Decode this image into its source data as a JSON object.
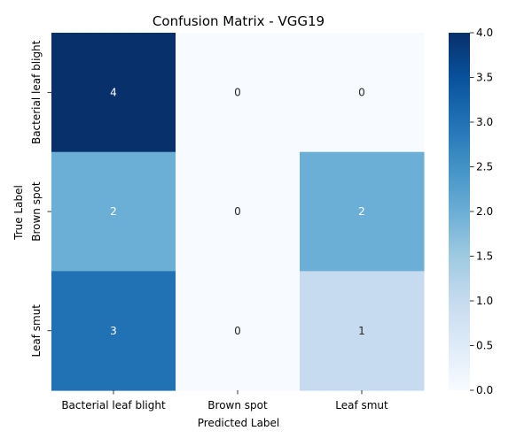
{
  "chart_data": {
    "type": "heatmap",
    "title": "Confusion Matrix - VGG19",
    "xlabel": "Predicted Label",
    "ylabel": "True Label",
    "x_categories": [
      "Bacterial leaf blight",
      "Brown spot",
      "Leaf smut"
    ],
    "y_categories": [
      "Bacterial leaf blight",
      "Brown spot",
      "Leaf smut"
    ],
    "values": [
      [
        4,
        0,
        0
      ],
      [
        2,
        0,
        2
      ],
      [
        3,
        0,
        1
      ]
    ],
    "colorbar": {
      "range": [
        0.0,
        4.0
      ],
      "ticks": [
        "0.0",
        "0.5",
        "1.0",
        "1.5",
        "2.0",
        "2.5",
        "3.0",
        "3.5",
        "4.0"
      ],
      "colormap": "Blues"
    }
  }
}
